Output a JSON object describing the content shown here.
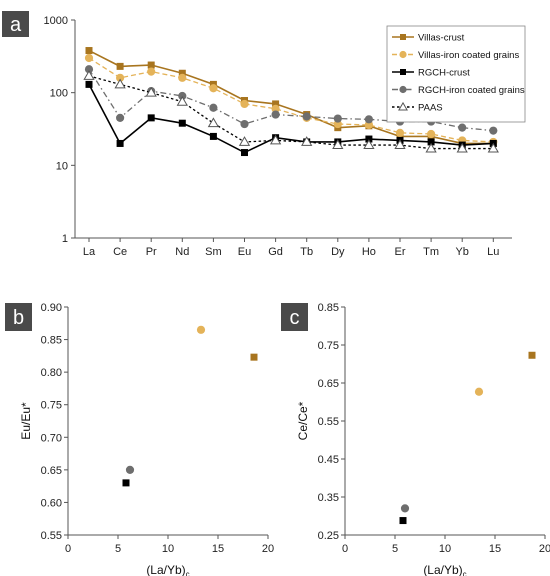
{
  "chart_data": [
    {
      "panel": "a",
      "type": "line",
      "yscale": "log",
      "ylim": [
        1,
        1000
      ],
      "y_ticks": [
        "1",
        "10",
        "100",
        "1000"
      ],
      "categories": [
        "La",
        "Ce",
        "Pr",
        "Nd",
        "Sm",
        "Eu",
        "Gd",
        "Tb",
        "Dy",
        "Ho",
        "Er",
        "Tm",
        "Yb",
        "Lu"
      ],
      "legend_position": "top-right",
      "series": [
        {
          "name": "Villas-crust",
          "color": "#a8751f",
          "marker": "square",
          "dash": "solid",
          "values": [
            380,
            230,
            240,
            185,
            130,
            78,
            70,
            50,
            33,
            35,
            25,
            25,
            20,
            20
          ],
          "x_index": [
            0,
            1,
            2,
            3,
            4,
            5,
            6,
            7,
            8,
            9,
            10,
            11,
            12,
            13
          ]
        },
        {
          "name": "Villas-iron coated grains",
          "color": "#e4b359",
          "marker": "circle",
          "dash": "dashed",
          "values": [
            300,
            160,
            195,
            160,
            115,
            70,
            60,
            45,
            37,
            36,
            28,
            27,
            22,
            21
          ],
          "x_index": [
            0,
            1,
            2,
            3,
            4,
            5,
            6,
            7,
            8,
            9,
            10,
            11,
            12,
            13
          ]
        },
        {
          "name": "RGCH-crust",
          "color": "#000000",
          "marker": "square",
          "dash": "solid",
          "values": [
            130,
            20,
            45,
            38,
            25,
            15,
            24,
            21,
            21,
            23,
            22,
            21,
            19,
            20
          ],
          "x_index": [
            0,
            1,
            2,
            3,
            4,
            5,
            6,
            7,
            8,
            9,
            10,
            11,
            12,
            13
          ]
        },
        {
          "name": "RGCH-iron coated grains",
          "color": "#6e6e6e",
          "marker": "circle",
          "dash": "dashdot",
          "values": [
            210,
            45,
            105,
            90,
            62,
            37,
            50,
            47,
            44,
            43,
            40,
            40,
            33,
            30
          ],
          "x_index": [
            0,
            1,
            2,
            3,
            4,
            5,
            6,
            7,
            8,
            9,
            10,
            11,
            12,
            13
          ]
        },
        {
          "name": "PAAS",
          "color": "#000000",
          "marker": "triangle",
          "dash": "dotted",
          "values": [
            170,
            130,
            100,
            75,
            38,
            21,
            22,
            21,
            19,
            19,
            19,
            17,
            17,
            17
          ],
          "x_index": [
            0,
            1,
            2,
            3,
            4,
            5,
            6,
            7,
            8,
            9,
            10,
            11,
            12,
            13
          ]
        }
      ]
    },
    {
      "panel": "b",
      "type": "scatter",
      "xlabel": "(La/Yb)",
      "xlabel_sub": "c",
      "ylabel": "Eu/Eu*",
      "xlim": [
        0,
        20
      ],
      "ylim": [
        0.55,
        0.9
      ],
      "x_ticks": [
        "0",
        "5",
        "10",
        "15",
        "20"
      ],
      "y_ticks": [
        "0.55",
        "0.60",
        "0.65",
        "0.70",
        "0.75",
        "0.80",
        "0.85",
        "0.90"
      ],
      "points": [
        {
          "x": 13.3,
          "y": 0.865,
          "color": "#e4b359",
          "marker": "circle"
        },
        {
          "x": 18.6,
          "y": 0.823,
          "color": "#a8751f",
          "marker": "square"
        },
        {
          "x": 6.2,
          "y": 0.65,
          "color": "#6e6e6e",
          "marker": "circle"
        },
        {
          "x": 5.8,
          "y": 0.63,
          "color": "#000000",
          "marker": "square"
        }
      ]
    },
    {
      "panel": "c",
      "type": "scatter",
      "xlabel": "(La/Yb)",
      "xlabel_sub": "c",
      "ylabel": "Ce/Ce*",
      "xlim": [
        0,
        20
      ],
      "ylim": [
        0.25,
        0.85
      ],
      "x_ticks": [
        "0",
        "5",
        "10",
        "15",
        "20"
      ],
      "y_ticks": [
        "0.25",
        "0.35",
        "0.45",
        "0.55",
        "0.65",
        "0.75",
        "0.85"
      ],
      "points": [
        {
          "x": 18.7,
          "y": 0.723,
          "color": "#a8751f",
          "marker": "square"
        },
        {
          "x": 13.4,
          "y": 0.627,
          "color": "#e4b359",
          "marker": "circle"
        },
        {
          "x": 6.0,
          "y": 0.32,
          "color": "#6e6e6e",
          "marker": "circle"
        },
        {
          "x": 5.8,
          "y": 0.288,
          "color": "#000000",
          "marker": "square"
        }
      ]
    }
  ]
}
